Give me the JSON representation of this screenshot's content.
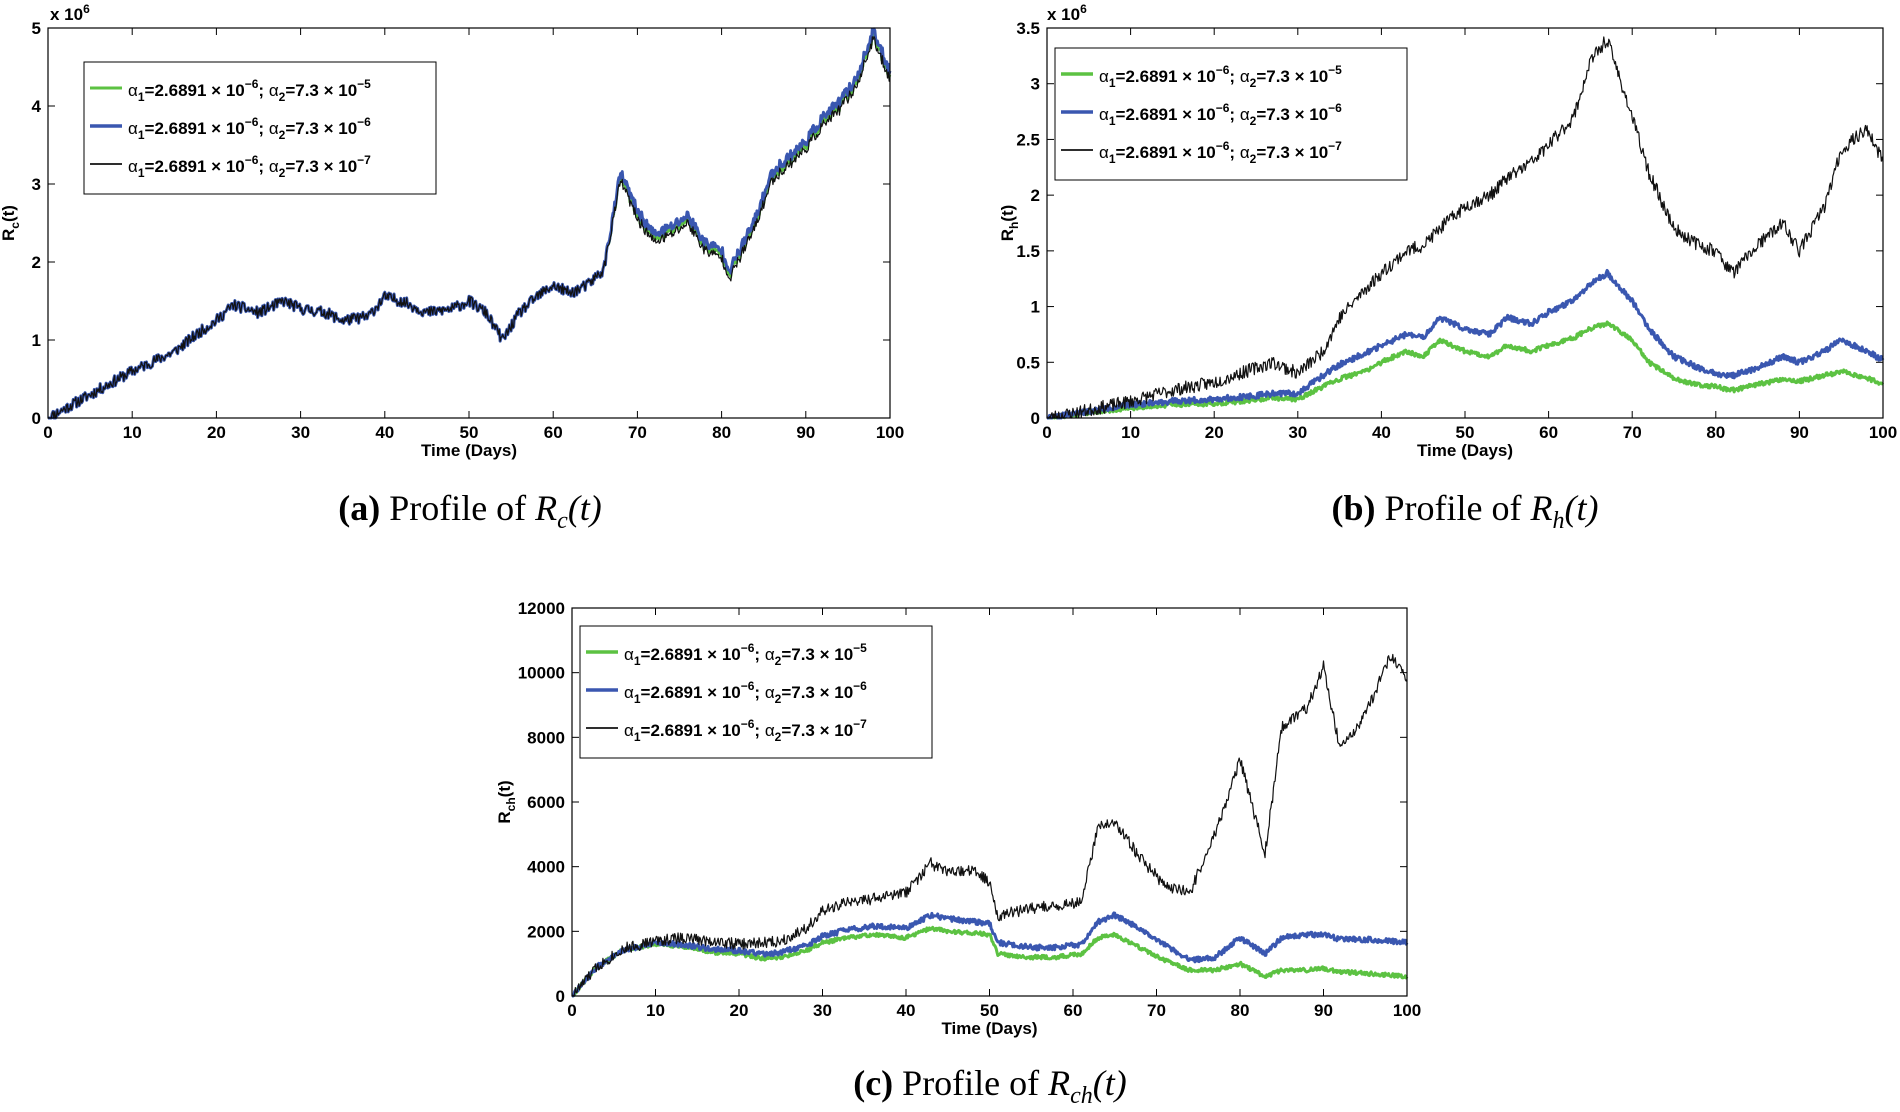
{
  "figure": {
    "panels": [
      {
        "id": "a",
        "caption_label": "(a)",
        "caption_text": "Profile of",
        "caption_var": "R",
        "caption_sub": "c",
        "caption_arg": "(t)",
        "ylabel_main": "R",
        "ylabel_sub": "c",
        "ylabel_arg": "(t)",
        "multiplier_base": "x 10",
        "multiplier_exp": "6"
      },
      {
        "id": "b",
        "caption_label": "(b)",
        "caption_text": "Profile of",
        "caption_var": "R",
        "caption_sub": "h",
        "caption_arg": "(t)",
        "ylabel_main": "R",
        "ylabel_sub": "h",
        "ylabel_arg": "(t)",
        "multiplier_base": "x 10",
        "multiplier_exp": "6"
      },
      {
        "id": "c",
        "caption_label": "(c)",
        "caption_text": "Profile of",
        "caption_var": "R",
        "caption_sub": "ch",
        "caption_arg": "(t)",
        "ylabel_main": "R",
        "ylabel_sub": "ch",
        "ylabel_arg": "(t)",
        "multiplier_base": "",
        "multiplier_exp": ""
      }
    ]
  },
  "legend": [
    {
      "a1": "α",
      "a1_sub": "1",
      "a1_val": "=2.6891 × 10",
      "a1_exp": "−6",
      "sep": "; ",
      "a2": "α",
      "a2_sub": "2",
      "a2_val": "=7.3 × 10",
      "a2_exp": "−5",
      "color": "#5cc242"
    },
    {
      "a1": "α",
      "a1_sub": "1",
      "a1_val": "=2.6891 × 10",
      "a1_exp": "−6",
      "sep": "; ",
      "a2": "α",
      "a2_sub": "2",
      "a2_val": "=7.3 × 10",
      "a2_exp": "−6",
      "color": "#3a57b0"
    },
    {
      "a1": "α",
      "a1_sub": "1",
      "a1_val": "=2.6891 × 10",
      "a1_exp": "−6",
      "sep": "; ",
      "a2": "α",
      "a2_sub": "2",
      "a2_val": "=7.3 × 10",
      "a2_exp": "−7",
      "color": "#111111"
    }
  ],
  "chart_data": [
    {
      "type": "line",
      "title": "Profile of Rc(t)",
      "xlabel": "Time (Days)",
      "ylabel": "Rc(t)",
      "xlim": [
        0,
        100
      ],
      "ylim": [
        0,
        5
      ],
      "y_multiplier": "x 10^6",
      "x_ticks": [
        0,
        10,
        20,
        30,
        40,
        50,
        60,
        70,
        80,
        90,
        100
      ],
      "x_tick_labels": [
        "0",
        "10",
        "20",
        "30",
        "40",
        "50",
        "60",
        "70",
        "80",
        "90",
        "100"
      ],
      "y_ticks": [
        0,
        1,
        2,
        3,
        4,
        5
      ],
      "y_tick_labels": [
        "0",
        "1",
        "2",
        "3",
        "4",
        "5"
      ],
      "x": [
        0,
        5,
        10,
        12,
        15,
        18,
        20,
        22,
        25,
        28,
        30,
        33,
        35,
        38,
        40,
        42,
        45,
        48,
        50,
        52,
        54,
        56,
        58,
        60,
        62,
        64,
        66,
        68,
        70,
        72,
        74,
        76,
        78,
        80,
        81,
        84,
        86,
        88,
        90,
        92,
        94,
        96,
        98,
        100
      ],
      "series": [
        {
          "name": "α1=2.6891×10^-6; α2=7.3×10^-5",
          "color": "#5cc242",
          "width": 2.5,
          "values": [
            0,
            0.3,
            0.6,
            0.7,
            0.85,
            1.1,
            1.25,
            1.45,
            1.35,
            1.5,
            1.4,
            1.35,
            1.25,
            1.3,
            1.55,
            1.5,
            1.35,
            1.4,
            1.5,
            1.35,
            1.0,
            1.35,
            1.55,
            1.7,
            1.6,
            1.7,
            1.9,
            3.1,
            2.6,
            2.3,
            2.4,
            2.55,
            2.2,
            2.1,
            1.85,
            2.5,
            3.1,
            3.3,
            3.5,
            3.8,
            4.0,
            4.3,
            4.9,
            4.4
          ],
          "noise": 0.07,
          "seed": 11
        },
        {
          "name": "α1=2.6891×10^-6; α2=7.3×10^-6",
          "color": "#3a57b0",
          "width": 3,
          "values": [
            0,
            0.3,
            0.6,
            0.7,
            0.85,
            1.1,
            1.25,
            1.45,
            1.35,
            1.5,
            1.4,
            1.35,
            1.25,
            1.3,
            1.55,
            1.5,
            1.35,
            1.4,
            1.5,
            1.35,
            1.0,
            1.35,
            1.55,
            1.7,
            1.6,
            1.7,
            1.9,
            3.15,
            2.65,
            2.35,
            2.45,
            2.6,
            2.25,
            2.15,
            1.9,
            2.55,
            3.15,
            3.35,
            3.55,
            3.85,
            4.05,
            4.35,
            4.95,
            4.45
          ],
          "noise": 0.07,
          "seed": 11
        },
        {
          "name": "α1=2.6891×10^-6; α2=7.3×10^-7",
          "color": "#111111",
          "width": 1.2,
          "values": [
            0,
            0.3,
            0.6,
            0.7,
            0.85,
            1.1,
            1.25,
            1.45,
            1.35,
            1.5,
            1.4,
            1.35,
            1.25,
            1.3,
            1.55,
            1.5,
            1.35,
            1.4,
            1.5,
            1.35,
            1.0,
            1.35,
            1.55,
            1.7,
            1.6,
            1.7,
            1.9,
            3.05,
            2.55,
            2.25,
            2.35,
            2.5,
            2.15,
            2.05,
            1.8,
            2.45,
            3.05,
            3.25,
            3.45,
            3.75,
            3.95,
            4.25,
            4.85,
            4.35
          ],
          "noise": 0.07,
          "seed": 11
        }
      ]
    },
    {
      "type": "line",
      "title": "Profile of Rh(t)",
      "xlabel": "Time (Days)",
      "ylabel": "Rh(t)",
      "xlim": [
        0,
        100
      ],
      "ylim": [
        0,
        3.5
      ],
      "y_multiplier": "x 10^6",
      "x_ticks": [
        0,
        10,
        20,
        30,
        40,
        50,
        60,
        70,
        80,
        90,
        100
      ],
      "x_tick_labels": [
        "0",
        "10",
        "20",
        "30",
        "40",
        "50",
        "60",
        "70",
        "80",
        "90",
        "100"
      ],
      "y_ticks": [
        0,
        0.5,
        1,
        1.5,
        2,
        2.5,
        3,
        3.5
      ],
      "y_tick_labels": [
        "0",
        "0.5",
        "1",
        "1.5",
        "2",
        "2.5",
        "3",
        "3.5"
      ],
      "x": [
        0,
        5,
        10,
        15,
        20,
        25,
        27,
        30,
        33,
        35,
        38,
        40,
        43,
        45,
        47,
        50,
        53,
        55,
        58,
        60,
        63,
        65,
        67,
        70,
        72,
        75,
        78,
        80,
        82,
        85,
        88,
        90,
        93,
        95,
        98,
        100
      ],
      "series": [
        {
          "name": "α1=2.6891×10^-6; α2=7.3×10^-5",
          "color": "#5cc242",
          "width": 3,
          "values": [
            0,
            0.05,
            0.09,
            0.12,
            0.13,
            0.16,
            0.18,
            0.17,
            0.28,
            0.35,
            0.42,
            0.5,
            0.6,
            0.55,
            0.7,
            0.6,
            0.55,
            0.65,
            0.6,
            0.65,
            0.72,
            0.8,
            0.85,
            0.7,
            0.5,
            0.35,
            0.3,
            0.28,
            0.25,
            0.3,
            0.35,
            0.33,
            0.38,
            0.42,
            0.36,
            0.3
          ],
          "noise": 0.02,
          "seed": 21
        },
        {
          "name": "α1=2.6891×10^-6; α2=7.3×10^-6",
          "color": "#3a57b0",
          "width": 3,
          "values": [
            0,
            0.06,
            0.12,
            0.15,
            0.17,
            0.2,
            0.22,
            0.22,
            0.38,
            0.48,
            0.58,
            0.65,
            0.75,
            0.72,
            0.9,
            0.8,
            0.75,
            0.9,
            0.85,
            0.95,
            1.05,
            1.2,
            1.3,
            1.05,
            0.8,
            0.55,
            0.45,
            0.4,
            0.38,
            0.45,
            0.55,
            0.5,
            0.6,
            0.7,
            0.6,
            0.52
          ],
          "noise": 0.025,
          "seed": 22
        },
        {
          "name": "α1=2.6891×10^-6; α2=7.3×10^-7",
          "color": "#111111",
          "width": 1.2,
          "values": [
            0,
            0.07,
            0.15,
            0.25,
            0.32,
            0.45,
            0.5,
            0.4,
            0.6,
            0.9,
            1.15,
            1.3,
            1.5,
            1.55,
            1.7,
            1.9,
            2.0,
            2.15,
            2.3,
            2.45,
            2.7,
            3.2,
            3.4,
            2.7,
            2.2,
            1.7,
            1.55,
            1.5,
            1.3,
            1.55,
            1.75,
            1.5,
            1.9,
            2.4,
            2.6,
            2.3
          ],
          "noise": 0.06,
          "seed": 23
        }
      ]
    },
    {
      "type": "line",
      "title": "Profile of Rch(t)",
      "xlabel": "Time (Days)",
      "ylabel": "Rch(t)",
      "xlim": [
        0,
        100
      ],
      "ylim": [
        0,
        12000
      ],
      "y_multiplier": "",
      "x_ticks": [
        0,
        10,
        20,
        30,
        40,
        50,
        60,
        70,
        80,
        90,
        100
      ],
      "x_tick_labels": [
        "0",
        "10",
        "20",
        "30",
        "40",
        "50",
        "60",
        "70",
        "80",
        "90",
        "100"
      ],
      "y_ticks": [
        0,
        2000,
        4000,
        6000,
        8000,
        10000,
        12000
      ],
      "y_tick_labels": [
        "0",
        "2000",
        "4000",
        "6000",
        "8000",
        "10000",
        "12000"
      ],
      "x": [
        0,
        3,
        6,
        10,
        13,
        17,
        20,
        23,
        25,
        28,
        30,
        33,
        36,
        40,
        43,
        45,
        48,
        50,
        51,
        55,
        58,
        61,
        63,
        65,
        68,
        71,
        74,
        77,
        80,
        83,
        85,
        88,
        90,
        92,
        95,
        98,
        100
      ],
      "series": [
        {
          "name": "α1=2.6891×10^-6; α2=7.3×10^-5",
          "color": "#5cc242",
          "width": 3,
          "values": [
            0,
            900,
            1400,
            1600,
            1550,
            1350,
            1300,
            1150,
            1200,
            1400,
            1650,
            1800,
            1900,
            1800,
            2100,
            2000,
            1950,
            1900,
            1300,
            1200,
            1200,
            1300,
            1800,
            1900,
            1500,
            1100,
            800,
            800,
            1000,
            600,
            800,
            800,
            850,
            750,
            700,
            650,
            600
          ],
          "noise": 60,
          "seed": 31
        },
        {
          "name": "α1=2.6891×10^-6; α2=7.3×10^-6",
          "color": "#3a57b0",
          "width": 3,
          "values": [
            0,
            900,
            1400,
            1650,
            1600,
            1450,
            1400,
            1300,
            1350,
            1550,
            1850,
            2050,
            2150,
            2100,
            2500,
            2400,
            2300,
            2250,
            1650,
            1500,
            1500,
            1600,
            2300,
            2500,
            2100,
            1600,
            1100,
            1200,
            1800,
            1300,
            1800,
            1900,
            1900,
            1750,
            1750,
            1700,
            1650
          ],
          "noise": 80,
          "seed": 32
        },
        {
          "name": "α1=2.6891×10^-6; α2=7.3×10^-7",
          "color": "#111111",
          "width": 1.2,
          "values": [
            0,
            900,
            1450,
            1700,
            1800,
            1700,
            1600,
            1650,
            1700,
            2100,
            2600,
            2900,
            3000,
            3200,
            4100,
            3800,
            3900,
            3500,
            2500,
            2700,
            2800,
            2900,
            5200,
            5400,
            4300,
            3400,
            3200,
            5000,
            7300,
            4400,
            8300,
            8900,
            10200,
            7600,
            8700,
            10500,
            9800
          ],
          "noise": 180,
          "seed": 33
        }
      ]
    }
  ]
}
